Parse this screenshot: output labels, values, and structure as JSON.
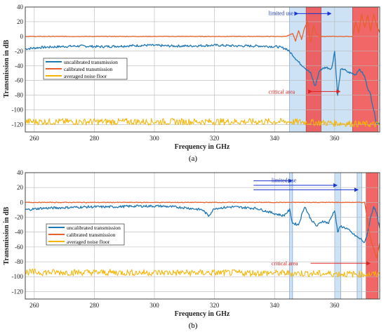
{
  "colors": {
    "uncalibrated": "#1f77b4",
    "calibrated": "#e8612c",
    "noise": "#f5b400",
    "limited_band": "#bcd8f2",
    "critical_band": "#ef4b4b",
    "limited_text": "#1a33d6",
    "critical_text": "#e02020",
    "grid": "#b8b8b8"
  },
  "chart_data": [
    {
      "type": "line",
      "caption": "(a)",
      "xlabel": "Frequency in GHz",
      "ylabel": "Transmission in dB",
      "xlim": [
        257,
        375
      ],
      "ylim": [
        -130,
        40
      ],
      "xticks": [
        260,
        280,
        300,
        320,
        340,
        360
      ],
      "yticks": [
        40,
        20,
        0,
        -20,
        -40,
        -60,
        -80,
        -100,
        -120
      ],
      "grid": true,
      "legend_position": "upper-left",
      "legend": [
        "uncalibrated transmission",
        "calibrated transmission",
        "averaged noise floor"
      ],
      "annotations": [
        {
          "text": "limited use",
          "color": "limited",
          "x": 338,
          "y": 32
        },
        {
          "text": "critical area",
          "color": "critical",
          "x": 338,
          "y": -75
        }
      ],
      "bands": [
        {
          "kind": "limited",
          "x": [
            345,
            366
          ]
        },
        {
          "kind": "critical",
          "x": [
            350.5,
            355.5
          ]
        },
        {
          "kind": "critical",
          "x": [
            366,
            374.5
          ]
        }
      ],
      "series": [
        {
          "name": "uncalibrated transmission",
          "x": [
            257,
            262,
            268,
            275,
            282,
            290,
            298,
            305,
            312,
            320,
            328,
            335,
            341,
            344,
            346,
            348,
            350,
            352,
            353.5,
            355,
            357,
            359,
            360,
            361,
            362,
            363,
            364,
            365.5,
            367,
            368,
            369,
            370,
            371,
            372,
            373,
            374,
            375
          ],
          "y": [
            -17,
            -15,
            -14,
            -13,
            -14,
            -13,
            -12,
            -13,
            -13,
            -12,
            -13,
            -13,
            -14,
            -17,
            -25,
            -35,
            -42,
            -50,
            -68,
            -46,
            -42,
            -44,
            -20,
            -80,
            -46,
            -44,
            -48,
            -50,
            -52,
            -45,
            -48,
            -55,
            -70,
            -80,
            -100,
            -118,
            -118
          ]
        },
        {
          "name": "calibrated transmission",
          "x": [
            257,
            300,
            344,
            346,
            347,
            348,
            349,
            350,
            351,
            352,
            353,
            354,
            355,
            356,
            360,
            366,
            367,
            368,
            369,
            370,
            371,
            372,
            373,
            374,
            375
          ],
          "y": [
            0,
            0,
            0,
            4,
            -6,
            8,
            -4,
            12,
            20,
            -8,
            15,
            3,
            0,
            0,
            0,
            0,
            20,
            5,
            30,
            12,
            28,
            8,
            30,
            15,
            5
          ]
        },
        {
          "name": "averaged noise floor",
          "x": [
            257,
            345,
            375
          ],
          "y": [
            -116,
            -116,
            -120
          ]
        }
      ]
    },
    {
      "type": "line",
      "caption": "(b)",
      "xlabel": "Frequency in GHz",
      "ylabel": "Transmission in dB",
      "xlim": [
        257,
        375
      ],
      "ylim": [
        -130,
        40
      ],
      "xticks": [
        260,
        280,
        300,
        320,
        340,
        360
      ],
      "yticks": [
        40,
        20,
        0,
        -20,
        -40,
        -60,
        -80,
        -100,
        -120
      ],
      "grid": true,
      "legend_position": "center-left",
      "legend": [
        "uncalibrated transmission",
        "calibrated transmission",
        "averaged noise floor"
      ],
      "annotations": [
        {
          "text": "limited use",
          "color": "limited",
          "x": 339,
          "y": 30
        },
        {
          "text": "critical area",
          "color": "critical",
          "x": 339,
          "y": -82
        }
      ],
      "bands": [
        {
          "kind": "limited",
          "x": [
            345,
            346
          ]
        },
        {
          "kind": "limited",
          "x": [
            360,
            362
          ]
        },
        {
          "kind": "limited",
          "x": [
            367.5,
            369
          ]
        },
        {
          "kind": "critical",
          "x": [
            370.5,
            374.5
          ]
        }
      ],
      "series": [
        {
          "name": "uncalibrated transmission",
          "x": [
            257,
            262,
            270,
            278,
            286,
            294,
            302,
            310,
            316,
            318,
            320,
            326,
            334,
            340,
            343,
            345,
            346,
            348,
            350,
            352,
            354,
            356,
            358,
            360,
            361,
            362,
            364,
            366,
            368,
            369,
            370,
            371,
            372,
            373,
            374,
            375
          ],
          "y": [
            -10,
            -8,
            -7,
            -6,
            -6,
            -5,
            -5,
            -7,
            -10,
            -18,
            -8,
            -6,
            -8,
            -15,
            -18,
            -10,
            -28,
            -30,
            -5,
            -22,
            -32,
            -25,
            -28,
            -10,
            -40,
            -32,
            -35,
            -42,
            -48,
            -50,
            -55,
            -40,
            -20,
            -5,
            -15,
            -35
          ]
        },
        {
          "name": "calibrated transmission",
          "x": [
            257,
            370,
            372,
            374,
            375
          ],
          "y": [
            0,
            0,
            -50,
            -75,
            -55
          ]
        },
        {
          "name": "averaged noise floor",
          "x": [
            257,
            340,
            375
          ],
          "y": [
            -94,
            -95,
            -97
          ]
        }
      ]
    }
  ]
}
